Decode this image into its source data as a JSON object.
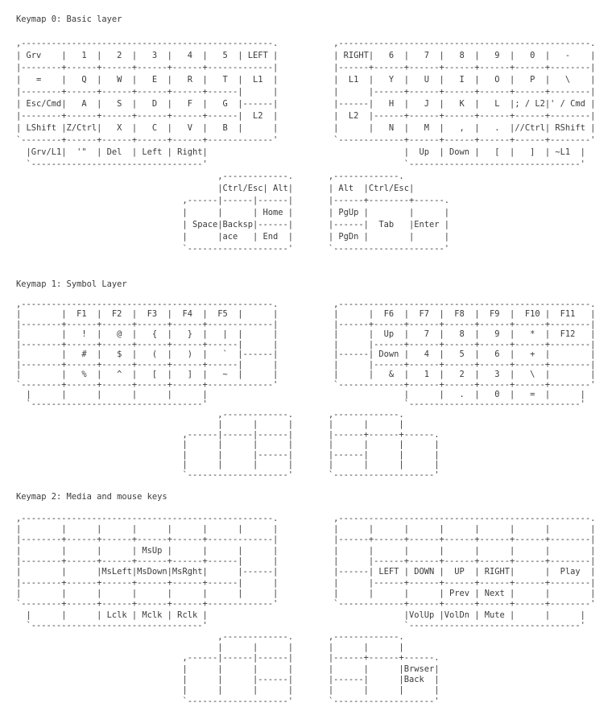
{
  "page": {
    "background": "#ffffff",
    "text_color": "#3b3b3b"
  },
  "sections": [
    {
      "id": "keymap-0",
      "title": "Keymap 0: Basic layer",
      "art": [
        ",--------------------------------------------------.           ,--------------------------------------------------.",
        "| Grv    |   1  |   2  |   3  |   4  |   5  | LEFT |           | RIGHT|   6  |   7  |   8  |   9  |   0  |   -    |",
        "|--------+------+------+------+------+-------------|           |------+------+------+------+------+------+--------|",
        "|   =    |   Q  |   W  |   E  |   R  |   T  |  L1  |           |  L1  |   Y  |   U  |   I  |   O  |   P  |   \\    |",
        "|--------+------+------+------+------+------|      |           |      |------+------+------+------+------+--------|",
        "| Esc/Cmd|   A  |   S  |   D  |   F  |   G  |------|           |------|   H  |   J  |   K  |   L  |; / L2|' / Cmd |",
        "|--------+------+------+------+------+------|  L2  |           |  L2  |------+------+------+------+------+--------|",
        "| LShift |Z/Ctrl|   X  |   C  |   V  |   B  |      |           |      |   N  |   M  |   ,  |   .  |//Ctrl| RShift |",
        "`--------+------+------+------+------+-------------'           `-------------+------+------+------+------+--------'",
        "  |Grv/L1|  '\"  | Del  | Left | Right|                                       |  Up  | Down |   [  |   ]  | ~L1  |",
        "  `----------------------------------'                                       `----------------------------------'",
        "                                        ,-------------.       ,-------------.",
        "                                        |Ctrl/Esc| Alt|       | Alt  |Ctrl/Esc|",
        "                                 ,------|------|------|       |------+--------+------.",
        "                                 |      |      | Home |       | PgUp |        |      |",
        "                                 | Space|Backsp|------|       |------|  Tab   |Enter |",
        "                                 |      |ace   | End  |       | PgDn |        |      |",
        "                                 `--------------------'       `----------------------'"
      ]
    },
    {
      "id": "keymap-1",
      "title": "Keymap 1: Symbol Layer",
      "art": [
        ",--------------------------------------------------.           ,--------------------------------------------------.",
        "|        |  F1  |  F2  |  F3  |  F4  |  F5  |      |           |      |  F6  |  F7  |  F8  |  F9  |  F10 |  F11   |",
        "|--------+------+------+------+------+-------------|           |------+------+------+------+------+------+--------|",
        "|        |   !  |   @  |   {  |   }  |   |  |      |           |      |  Up  |   7  |   8  |   9  |   *  |  F12   |",
        "|--------+------+------+------+------+------|      |           |      |------+------+------+------+------+--------|",
        "|        |   #  |   $  |   (  |   )  |   `  |------|           |------| Down |   4  |   5  |   6  |   +  |        |",
        "|--------+------+------+------+------+------|      |           |      |------+------+------+------+------+--------|",
        "|        |   %  |   ^  |   [  |   ]  |   ~  |      |           |      |   &  |   1  |   2  |   3  |   \\  |        |",
        "`--------+------+------+------+------+-------------'           `-------------+------+------+------+------+--------'",
        "  |      |      |      |      |      |                                       |      |   .  |   0  |   =  |      |",
        "  `----------------------------------'                                       `----------------------------------'",
        "                                        ,-------------.       ,-------------.",
        "                                        |      |      |       |      |      |",
        "                                 ,------|------|------|       |------+------+------.",
        "                                 |      |      |      |       |      |      |      |",
        "                                 |      |      |------|       |------|      |      |",
        "                                 |      |      |      |       |      |      |      |",
        "                                 `--------------------'       `--------------------'"
      ]
    },
    {
      "id": "keymap-2",
      "title": "Keymap 2: Media and mouse keys",
      "art": [
        ",--------------------------------------------------.           ,--------------------------------------------------.",
        "|        |      |      |      |      |      |      |           |      |      |      |      |      |      |        |",
        "|--------+------+------+------+------+-------------|           |------+------+------+------+------+------+--------|",
        "|        |      |      | MsUp |      |      |      |           |      |      |      |      |      |      |        |",
        "|--------+------+------+------+------+------|      |           |      |------+------+------+------+------+--------|",
        "|        |      |MsLeft|MsDown|MsRght|      |------|           |------| LEFT | DOWN |  UP  | RIGHT|      |  Play  |",
        "|--------+------+------+------+------+------|      |           |      |------+------+------+------+------+--------|",
        "|        |      |      |      |      |      |      |           |      |      |      | Prev | Next |      |        |",
        "`--------+------+------+------+------+-------------'           `-------------+------+------+------+------+--------'",
        "  |      |      | Lclk | Mclk | Rclk |                                       |VolUp |VolDn | Mute |      |      |",
        "  `----------------------------------'                                       `----------------------------------'",
        "                                        ,-------------.       ,-------------.",
        "                                        |      |      |       |      |      |",
        "                                 ,------|------|------|       |------+------+------.",
        "                                 |      |      |      |       |      |      |Brwser|",
        "                                 |      |      |------|       |------|      |Back  |",
        "                                 |      |      |      |       |      |      |      |",
        "                                 `--------------------'       `--------------------'"
      ]
    }
  ]
}
